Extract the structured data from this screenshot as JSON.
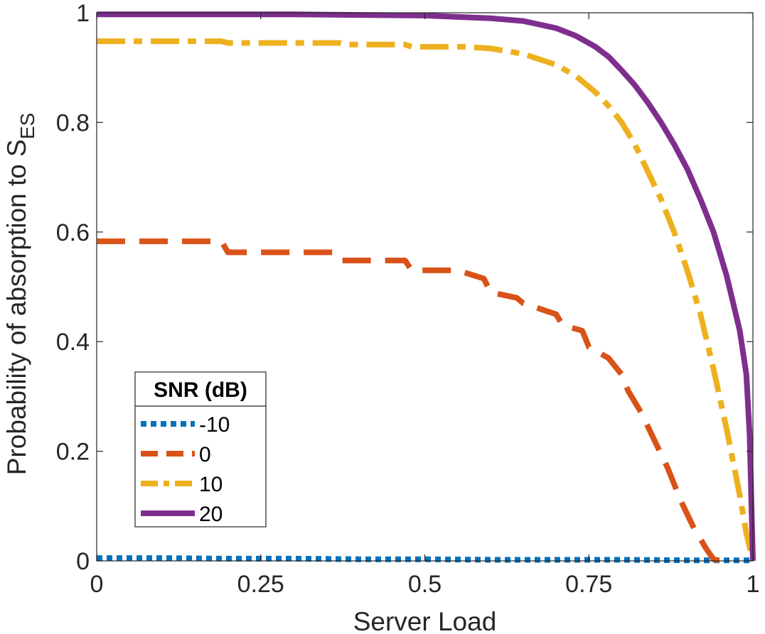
{
  "chart_data": {
    "type": "line",
    "xlabel": "Server Load",
    "ylabel_main": "Probability of absorption to S",
    "ylabel_sub": "ES",
    "xlim": [
      0,
      1
    ],
    "ylim": [
      0,
      1
    ],
    "xticks": [
      0,
      0.25,
      0.5,
      0.75,
      1
    ],
    "xtick_labels": [
      "0",
      "0.25",
      "0.5",
      "0.75",
      "1"
    ],
    "yticks": [
      0,
      0.2,
      0.4,
      0.6,
      0.8,
      1
    ],
    "ytick_labels": [
      "0",
      "0.2",
      "0.4",
      "0.6",
      "0.8",
      "1"
    ],
    "grid": false,
    "legend": {
      "title": "SNR (dB)",
      "placement": "lower-left"
    },
    "series": [
      {
        "name": "-10",
        "color": "#0072BD",
        "style": "dotted",
        "x": [
          0,
          0.1,
          0.2,
          0.3,
          0.4,
          0.5,
          0.6,
          0.7,
          0.8,
          0.9,
          1.0
        ],
        "y": [
          0.005,
          0.005,
          0.004,
          0.004,
          0.003,
          0.003,
          0.002,
          0.002,
          0.002,
          0.001,
          0.001
        ]
      },
      {
        "name": "0",
        "color": "#D95319",
        "style": "dashed",
        "x": [
          0,
          0.05,
          0.1,
          0.15,
          0.19,
          0.2,
          0.25,
          0.3,
          0.36,
          0.37,
          0.4,
          0.47,
          0.48,
          0.55,
          0.59,
          0.6,
          0.64,
          0.65,
          0.7,
          0.71,
          0.74,
          0.75,
          0.78,
          0.8,
          0.81,
          0.83,
          0.85,
          0.87,
          0.89,
          0.91,
          0.93,
          0.94,
          0.95
        ],
        "y": [
          0.583,
          0.583,
          0.583,
          0.583,
          0.583,
          0.563,
          0.563,
          0.563,
          0.563,
          0.548,
          0.548,
          0.548,
          0.53,
          0.53,
          0.515,
          0.49,
          0.48,
          0.47,
          0.45,
          0.43,
          0.42,
          0.39,
          0.37,
          0.34,
          0.31,
          0.27,
          0.22,
          0.17,
          0.11,
          0.06,
          0.02,
          0.003,
          0.0
        ]
      },
      {
        "name": "10",
        "color": "#EDB120",
        "style": "dashdot",
        "x": [
          0,
          0.1,
          0.19,
          0.2,
          0.3,
          0.37,
          0.38,
          0.47,
          0.48,
          0.56,
          0.6,
          0.65,
          0.7,
          0.73,
          0.76,
          0.78,
          0.8,
          0.82,
          0.84,
          0.86,
          0.88,
          0.9,
          0.92,
          0.94,
          0.96,
          0.98,
          0.99,
          1.0
        ],
        "y": [
          0.948,
          0.948,
          0.948,
          0.945,
          0.945,
          0.945,
          0.942,
          0.942,
          0.938,
          0.938,
          0.935,
          0.925,
          0.905,
          0.885,
          0.855,
          0.83,
          0.8,
          0.76,
          0.71,
          0.66,
          0.6,
          0.53,
          0.45,
          0.35,
          0.24,
          0.12,
          0.05,
          0.0
        ]
      },
      {
        "name": "20",
        "color": "#7E2F8E",
        "style": "solid",
        "x": [
          0,
          0.1,
          0.2,
          0.3,
          0.4,
          0.5,
          0.6,
          0.65,
          0.7,
          0.73,
          0.76,
          0.78,
          0.8,
          0.82,
          0.84,
          0.86,
          0.88,
          0.9,
          0.92,
          0.94,
          0.96,
          0.98,
          0.99,
          0.995,
          1.0
        ],
        "y": [
          0.997,
          0.997,
          0.997,
          0.997,
          0.996,
          0.995,
          0.99,
          0.985,
          0.972,
          0.958,
          0.938,
          0.92,
          0.895,
          0.868,
          0.836,
          0.8,
          0.76,
          0.715,
          0.66,
          0.6,
          0.52,
          0.42,
          0.34,
          0.23,
          0.0
        ]
      }
    ]
  }
}
